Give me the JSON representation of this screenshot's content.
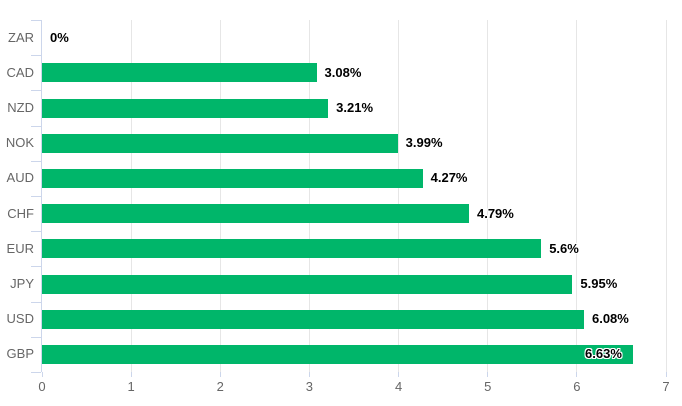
{
  "chart_data": {
    "type": "bar",
    "orientation": "horizontal",
    "title": "",
    "categories": [
      "ZAR",
      "CAD",
      "NZD",
      "NOK",
      "AUD",
      "CHF",
      "EUR",
      "JPY",
      "USD",
      "GBP"
    ],
    "values": [
      0,
      3.08,
      3.21,
      3.99,
      4.27,
      4.79,
      5.6,
      5.95,
      6.08,
      6.63
    ],
    "data_labels": [
      "0%",
      "3.08%",
      "3.21%",
      "3.99%",
      "4.27%",
      "4.79%",
      "5.6%",
      "5.95%",
      "6.08%",
      "6.63%"
    ],
    "xlim": [
      0,
      7
    ],
    "x_ticks": [
      "0",
      "1",
      "2",
      "3",
      "4",
      "5",
      "6",
      "7"
    ],
    "grid": true,
    "legend": false,
    "colors": {
      "bar": "#00b66a",
      "value_label": "#000000",
      "category_label": "#666666",
      "axis_tick_label": "#666666",
      "gridline": "#e6e6e6",
      "axis_line": "#ccd6eb"
    }
  }
}
